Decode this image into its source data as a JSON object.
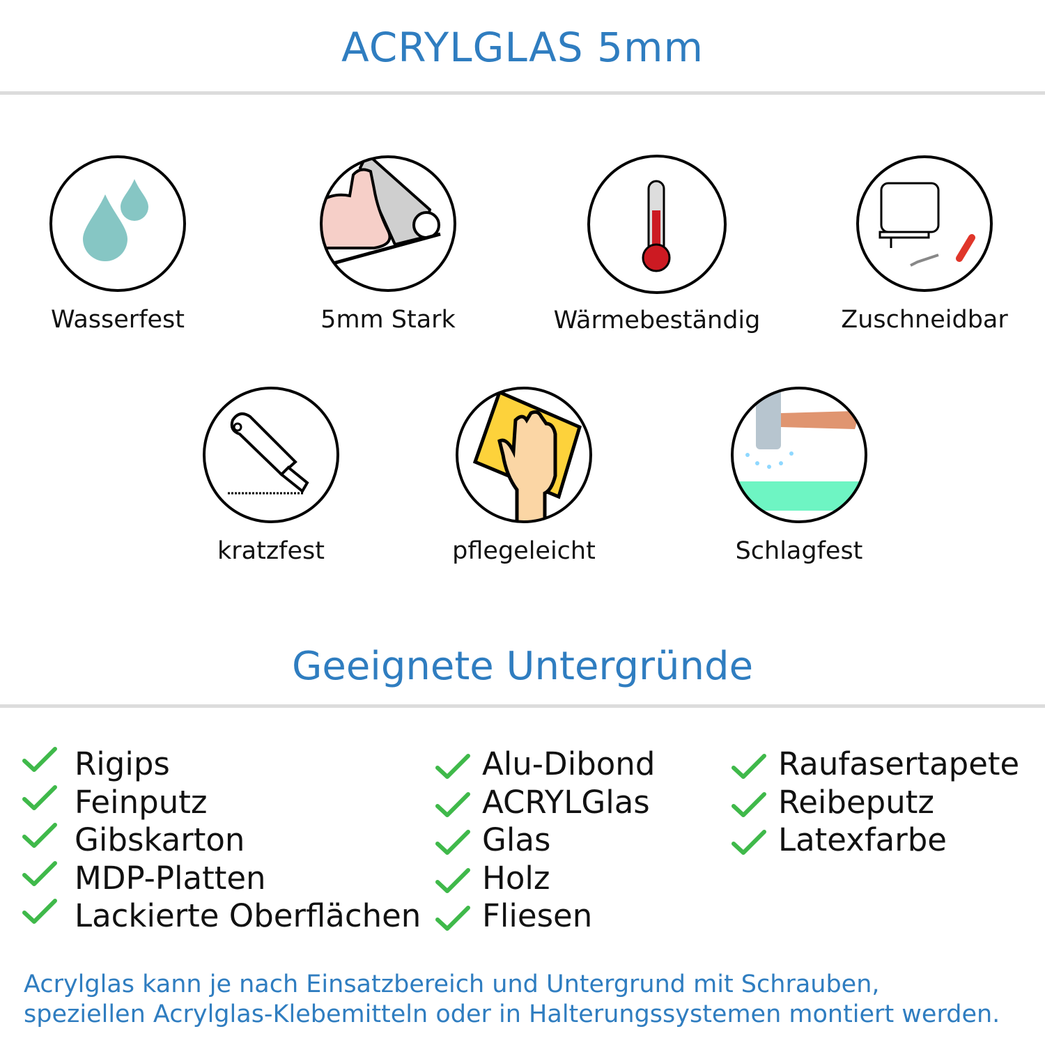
{
  "header": {
    "title": "ACRYLGLAS 5mm"
  },
  "features": [
    {
      "label": "Wasserfest",
      "icon": "water-drops-icon"
    },
    {
      "label": "5mm Stark",
      "icon": "strong-arm-icon"
    },
    {
      "label": "Wärmebeständig",
      "icon": "thermometer-icon"
    },
    {
      "label": "Zuschneidbar",
      "icon": "jigsaw-knife-icon"
    },
    {
      "label": "kratzfest",
      "icon": "cutter-knife-icon"
    },
    {
      "label": "pflegeleicht",
      "icon": "hand-cloth-icon"
    },
    {
      "label": "Schlagfest",
      "icon": "hammer-icon"
    }
  ],
  "surfaces": {
    "title": "Geeignete Untergründe",
    "columns": [
      [
        "Rigips",
        "Feinputz",
        "Gibskarton",
        "MDP-Platten",
        "Lackierte Oberflächen"
      ],
      [
        "Alu-Dibond",
        "ACRYLGlas",
        "Glas",
        "Holz",
        "Fliesen"
      ],
      [
        "Raufasertapete",
        "Reibeputz",
        "Latexfarbe"
      ]
    ],
    "check_color": "#3fb94a"
  },
  "footer": {
    "line1": "Acrylglas kann je nach Einsatzbereich und Untergrund mit Schrauben,",
    "line2": "speziellen Acrylglas-Klebemitteln oder in Halterungssystemen montiert werden."
  },
  "colors": {
    "accent": "#2f7dc0",
    "rule": "#dcdcdc"
  }
}
